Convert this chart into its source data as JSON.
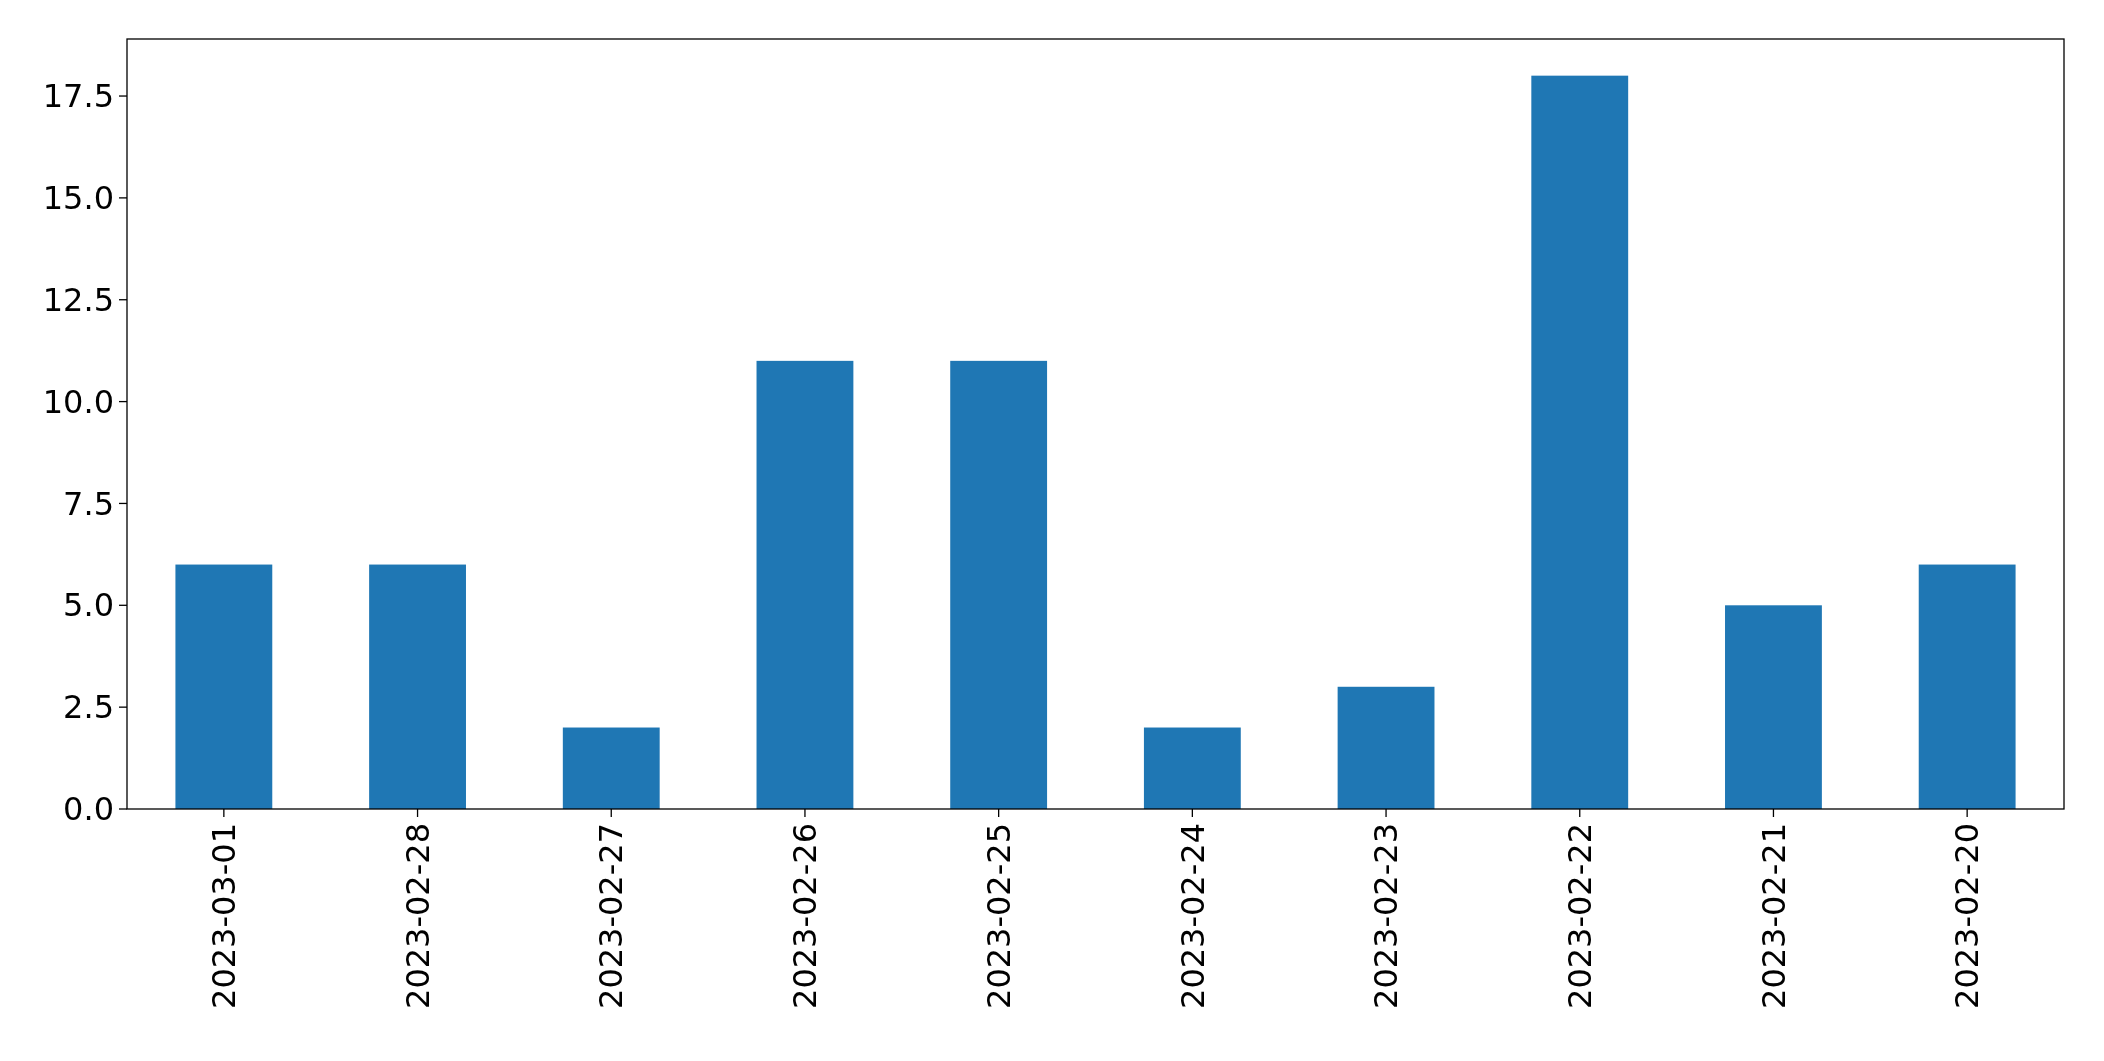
{
  "chart_data": {
    "type": "bar",
    "categories": [
      "2023-03-01",
      "2023-02-28",
      "2023-02-27",
      "2023-02-26",
      "2023-02-25",
      "2023-02-24",
      "2023-02-23",
      "2023-02-22",
      "2023-02-21",
      "2023-02-20"
    ],
    "values": [
      6,
      6,
      2,
      11,
      11,
      2,
      3,
      18,
      5,
      6
    ],
    "color": "#1f77b4",
    "ylim": [
      0,
      18.9
    ],
    "yticks": [
      {
        "value": 0,
        "label": "0.0"
      },
      {
        "value": 2.5,
        "label": "2.5"
      },
      {
        "value": 5,
        "label": "5.0"
      },
      {
        "value": 7.5,
        "label": "7.5"
      },
      {
        "value": 10,
        "label": "10.0"
      },
      {
        "value": 12.5,
        "label": "12.5"
      },
      {
        "value": 15,
        "label": "15.0"
      },
      {
        "value": 17.5,
        "label": "17.5"
      }
    ],
    "tick_labels": true
  }
}
